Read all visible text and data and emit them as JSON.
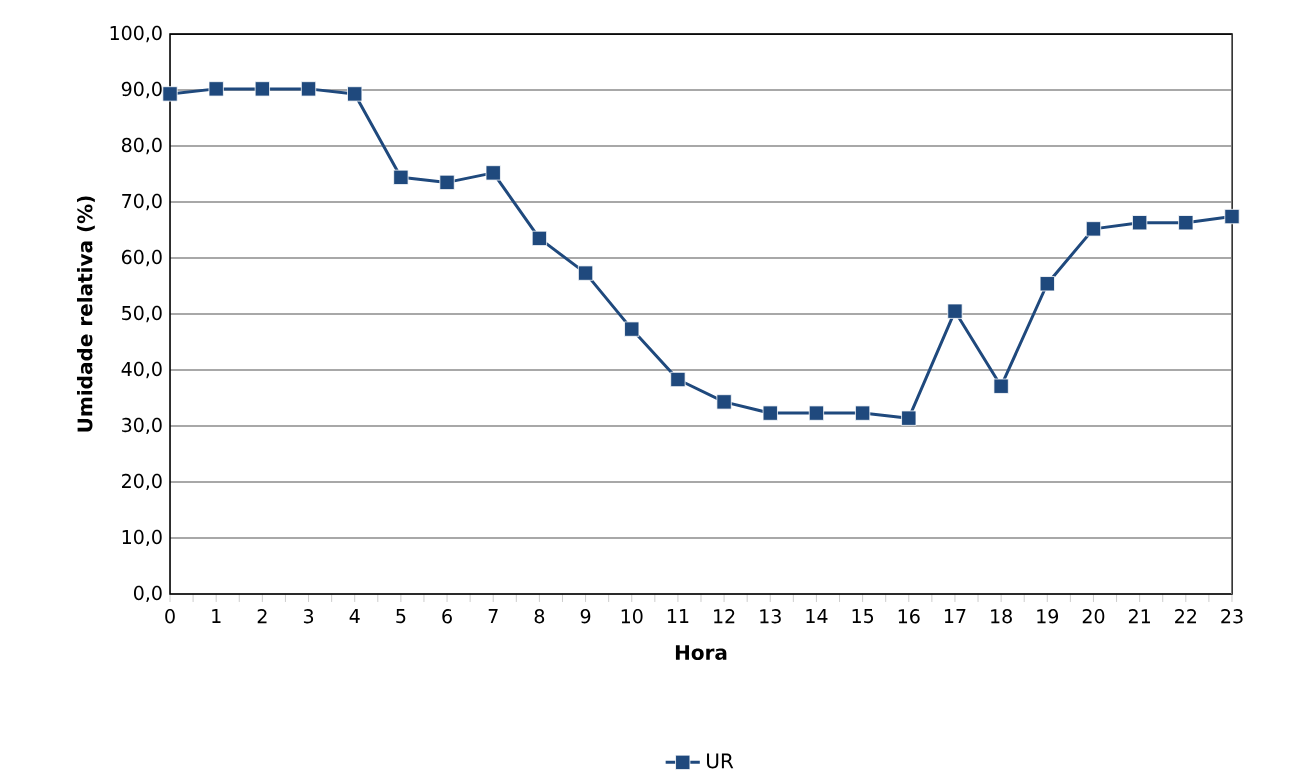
{
  "chart_data": {
    "type": "line",
    "xlabel": "Hora",
    "ylabel": "Umidade relativa (%)",
    "categories": [
      "0",
      "1",
      "2",
      "3",
      "4",
      "5",
      "6",
      "7",
      "8",
      "9",
      "10",
      "11",
      "12",
      "13",
      "14",
      "15",
      "16",
      "17",
      "18",
      "19",
      "20",
      "21",
      "22",
      "23"
    ],
    "series": [
      {
        "name": "UR",
        "color": "#1f497d",
        "values": [
          89.3,
          90.2,
          90.2,
          90.2,
          89.3,
          74.4,
          73.5,
          75.2,
          63.5,
          57.3,
          47.3,
          38.3,
          34.3,
          32.3,
          32.3,
          32.3,
          31.4,
          50.5,
          37.1,
          55.4,
          65.2,
          66.3,
          66.3,
          67.4
        ]
      }
    ],
    "ylim": [
      0,
      100
    ],
    "yticks": [
      {
        "value": 0,
        "label": "0,0"
      },
      {
        "value": 10,
        "label": "10,0"
      },
      {
        "value": 20,
        "label": "20,0"
      },
      {
        "value": 30,
        "label": "30,0"
      },
      {
        "value": 40,
        "label": "40,0"
      },
      {
        "value": 50,
        "label": "50,0"
      },
      {
        "value": 60,
        "label": "60,0"
      },
      {
        "value": 70,
        "label": "70,0"
      },
      {
        "value": 80,
        "label": "80,0"
      },
      {
        "value": 90,
        "label": "90,0"
      },
      {
        "value": 100,
        "label": "100,0"
      }
    ],
    "grid": "y",
    "legend": "bottom",
    "marker": "square",
    "line_style": "solid"
  }
}
